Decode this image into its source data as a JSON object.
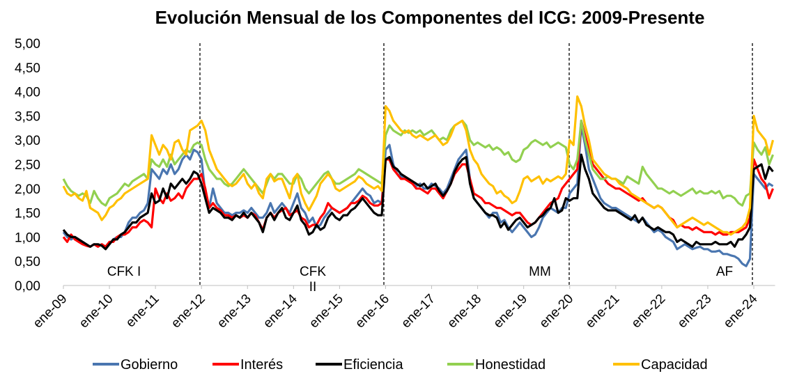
{
  "chart_data": {
    "type": "line",
    "title": "Evolución Mensual de los Componentes del ICG: 2009-Presente",
    "categories": [
      "ene-09",
      null,
      null,
      null,
      null,
      null,
      null,
      null,
      null,
      null,
      null,
      null,
      "ene-10",
      null,
      null,
      null,
      null,
      null,
      null,
      null,
      null,
      null,
      null,
      null,
      "ene-11",
      null,
      null,
      null,
      null,
      null,
      null,
      null,
      null,
      null,
      null,
      null,
      "ene-12",
      null,
      null,
      null,
      null,
      null,
      null,
      null,
      null,
      null,
      null,
      null,
      "ene-13",
      null,
      null,
      null,
      null,
      null,
      null,
      null,
      null,
      null,
      null,
      null,
      "ene-14",
      null,
      null,
      null,
      null,
      null,
      null,
      null,
      null,
      null,
      null,
      null,
      "ene-15",
      null,
      null,
      null,
      null,
      null,
      null,
      null,
      null,
      null,
      null,
      null,
      "ene-16",
      null,
      null,
      null,
      null,
      null,
      null,
      null,
      null,
      null,
      null,
      null,
      "ene-17",
      null,
      null,
      null,
      null,
      null,
      null,
      null,
      null,
      null,
      null,
      null,
      "ene-18",
      null,
      null,
      null,
      null,
      null,
      null,
      null,
      null,
      null,
      null,
      null,
      "ene-19",
      null,
      null,
      null,
      null,
      null,
      null,
      null,
      null,
      null,
      null,
      null,
      "ene-20",
      null,
      null,
      null,
      null,
      null,
      null,
      null,
      null,
      null,
      null,
      null,
      "ene-21",
      null,
      null,
      null,
      null,
      null,
      null,
      null,
      null,
      null,
      null,
      null,
      "ene-22",
      null,
      null,
      null,
      null,
      null,
      null,
      null,
      null,
      null,
      null,
      null,
      "ene-23",
      null,
      null,
      null,
      null,
      null,
      null,
      null,
      null,
      null,
      null,
      null,
      "ene-24",
      null,
      null,
      null,
      null,
      null
    ],
    "series": [
      {
        "name": "Gobierno",
        "color": "#4a76b0",
        "values": [
          1.1,
          1.0,
          0.95,
          1.0,
          0.95,
          0.9,
          0.85,
          0.8,
          0.85,
          0.8,
          0.85,
          0.8,
          0.85,
          0.95,
          1.0,
          1.0,
          1.1,
          1.3,
          1.4,
          1.4,
          1.5,
          1.55,
          1.7,
          2.4,
          2.3,
          2.2,
          2.4,
          2.3,
          2.5,
          2.3,
          2.4,
          2.6,
          2.7,
          2.6,
          2.8,
          2.75,
          2.6,
          1.9,
          1.6,
          2.0,
          1.7,
          1.6,
          1.5,
          1.5,
          1.45,
          1.5,
          1.5,
          1.55,
          1.5,
          1.6,
          1.5,
          1.4,
          1.4,
          1.5,
          1.7,
          1.5,
          1.6,
          1.7,
          1.6,
          1.5,
          1.7,
          1.9,
          1.6,
          1.5,
          1.3,
          1.4,
          1.2,
          1.25,
          1.4,
          1.5,
          1.6,
          1.55,
          1.5,
          1.55,
          1.6,
          1.7,
          1.8,
          1.9,
          2.0,
          1.9,
          1.85,
          1.7,
          1.75,
          1.7,
          2.8,
          2.9,
          2.5,
          2.3,
          2.25,
          2.2,
          2.2,
          2.1,
          2.05,
          2.1,
          2.0,
          2.0,
          2.1,
          2.05,
          2.0,
          1.9,
          2.0,
          2.2,
          2.4,
          2.6,
          2.7,
          2.8,
          2.2,
          1.8,
          1.7,
          1.6,
          1.5,
          1.4,
          1.5,
          1.5,
          1.3,
          1.35,
          1.2,
          1.1,
          1.2,
          1.3,
          1.2,
          1.1,
          1.0,
          1.05,
          1.2,
          1.4,
          1.5,
          1.6,
          1.55,
          1.5,
          1.6,
          1.6,
          1.9,
          2.0,
          2.1,
          3.3,
          2.9,
          2.4,
          2.2,
          2.0,
          1.8,
          1.7,
          1.65,
          1.6,
          1.6,
          1.55,
          1.5,
          1.45,
          1.4,
          1.35,
          1.3,
          1.4,
          1.3,
          1.2,
          1.1,
          1.15,
          1.1,
          1.0,
          0.95,
          0.9,
          0.75,
          0.8,
          0.85,
          0.8,
          0.75,
          0.78,
          0.8,
          0.75,
          0.75,
          0.7,
          0.7,
          0.72,
          0.65,
          0.65,
          0.62,
          0.6,
          0.55,
          0.45,
          0.4,
          0.55,
          2.3,
          2.2,
          2.1,
          2.0,
          2.1,
          2.05
        ]
      },
      {
        "name": "Interés",
        "color": "#ff0000",
        "values": [
          1.0,
          0.9,
          1.05,
          0.95,
          0.9,
          0.85,
          0.82,
          0.8,
          0.85,
          0.8,
          0.85,
          0.8,
          0.9,
          0.9,
          1.0,
          1.05,
          1.05,
          1.1,
          1.2,
          1.2,
          1.3,
          1.35,
          1.3,
          1.2,
          2.0,
          1.8,
          1.7,
          1.9,
          1.75,
          1.8,
          1.9,
          1.8,
          2.0,
          2.1,
          2.2,
          2.2,
          2.3,
          2.0,
          1.6,
          1.7,
          1.6,
          1.55,
          1.45,
          1.45,
          1.4,
          1.45,
          1.4,
          1.45,
          1.4,
          1.5,
          1.45,
          1.3,
          1.15,
          1.4,
          1.5,
          1.4,
          1.5,
          1.55,
          1.6,
          1.45,
          1.5,
          1.55,
          1.4,
          1.35,
          1.2,
          1.25,
          1.25,
          1.4,
          1.5,
          1.7,
          1.6,
          1.55,
          1.5,
          1.55,
          1.6,
          1.7,
          1.7,
          1.75,
          1.85,
          1.8,
          1.7,
          1.65,
          1.65,
          1.7,
          2.6,
          2.6,
          2.4,
          2.3,
          2.2,
          2.2,
          2.15,
          2.1,
          2.0,
          2.0,
          1.95,
          1.9,
          2.0,
          2.0,
          1.9,
          1.8,
          1.95,
          2.1,
          2.3,
          2.4,
          2.5,
          2.5,
          2.2,
          1.9,
          1.85,
          1.8,
          1.7,
          1.7,
          1.65,
          1.6,
          1.6,
          1.55,
          1.5,
          1.45,
          1.5,
          1.5,
          1.4,
          1.3,
          1.25,
          1.3,
          1.4,
          1.5,
          1.6,
          1.7,
          1.75,
          1.8,
          2.0,
          2.1,
          2.2,
          2.3,
          2.4,
          3.4,
          3.1,
          2.8,
          2.5,
          2.4,
          2.3,
          2.2,
          2.1,
          2.05,
          2.0,
          2.0,
          1.95,
          1.9,
          1.85,
          1.8,
          1.75,
          1.8,
          1.7,
          1.65,
          1.6,
          1.65,
          1.6,
          1.5,
          1.4,
          1.35,
          1.2,
          1.25,
          1.2,
          1.2,
          1.15,
          1.2,
          1.15,
          1.1,
          1.1,
          1.1,
          1.05,
          1.1,
          1.05,
          1.05,
          1.1,
          1.1,
          1.1,
          1.15,
          1.2,
          1.4,
          2.6,
          2.4,
          2.2,
          2.1,
          1.8,
          2.0
        ]
      },
      {
        "name": "Eficiencia",
        "color": "#000000",
        "values": [
          1.15,
          1.05,
          1.0,
          1.0,
          0.95,
          0.9,
          0.85,
          0.8,
          0.85,
          0.85,
          0.82,
          0.75,
          0.85,
          0.95,
          0.95,
          1.05,
          1.1,
          1.2,
          1.3,
          1.3,
          1.4,
          1.45,
          1.5,
          1.9,
          1.7,
          1.75,
          2.0,
          1.8,
          2.1,
          2.0,
          2.1,
          2.2,
          2.1,
          2.2,
          2.35,
          2.3,
          2.1,
          1.8,
          1.5,
          1.6,
          1.55,
          1.5,
          1.4,
          1.4,
          1.35,
          1.45,
          1.4,
          1.5,
          1.4,
          1.5,
          1.4,
          1.3,
          1.1,
          1.4,
          1.5,
          1.35,
          1.5,
          1.6,
          1.4,
          1.35,
          1.5,
          1.65,
          1.35,
          1.25,
          1.05,
          1.1,
          1.25,
          1.15,
          1.2,
          1.4,
          1.5,
          1.4,
          1.35,
          1.45,
          1.45,
          1.55,
          1.6,
          1.7,
          1.8,
          1.7,
          1.6,
          1.5,
          1.45,
          1.45,
          2.6,
          2.65,
          2.45,
          2.4,
          2.3,
          2.25,
          2.2,
          2.15,
          2.1,
          2.05,
          2.1,
          2.0,
          2.05,
          2.1,
          1.95,
          1.85,
          1.95,
          2.1,
          2.35,
          2.5,
          2.6,
          2.65,
          2.1,
          1.8,
          1.7,
          1.6,
          1.5,
          1.45,
          1.45,
          1.4,
          1.2,
          1.3,
          1.15,
          1.25,
          1.35,
          1.4,
          1.3,
          1.2,
          1.25,
          1.3,
          1.4,
          1.45,
          1.55,
          1.6,
          1.8,
          1.5,
          1.55,
          1.8,
          1.75,
          1.8,
          1.8,
          2.7,
          2.4,
          2.2,
          1.9,
          1.8,
          1.7,
          1.6,
          1.55,
          1.55,
          1.55,
          1.5,
          1.45,
          1.4,
          1.35,
          1.45,
          1.3,
          1.4,
          1.25,
          1.2,
          1.15,
          1.2,
          1.15,
          1.1,
          1.1,
          1.05,
          0.9,
          0.95,
          0.9,
          0.85,
          0.8,
          0.9,
          0.85,
          0.85,
          0.85,
          0.85,
          0.9,
          0.85,
          0.85,
          0.85,
          0.9,
          0.8,
          0.95,
          0.95,
          1.05,
          1.2,
          2.4,
          2.45,
          2.5,
          2.2,
          2.45,
          2.35
        ]
      },
      {
        "name": "Honestidad",
        "color": "#92d050",
        "values": [
          2.2,
          2.05,
          1.95,
          1.9,
          1.85,
          1.9,
          1.85,
          1.7,
          1.95,
          1.8,
          1.7,
          1.65,
          1.8,
          1.85,
          1.9,
          2.0,
          2.1,
          2.05,
          2.15,
          2.2,
          2.25,
          2.3,
          2.2,
          2.6,
          2.5,
          2.45,
          2.6,
          2.45,
          2.7,
          2.5,
          2.6,
          2.7,
          2.8,
          2.75,
          2.9,
          2.95,
          2.9,
          2.6,
          2.4,
          2.3,
          2.2,
          2.2,
          2.1,
          2.05,
          2.1,
          2.2,
          2.3,
          2.4,
          2.3,
          2.2,
          2.1,
          2.0,
          1.9,
          2.1,
          2.3,
          2.2,
          2.3,
          2.3,
          2.2,
          2.1,
          2.1,
          2.3,
          2.2,
          2.0,
          1.9,
          2.0,
          2.1,
          2.2,
          2.3,
          2.35,
          2.2,
          2.1,
          2.1,
          2.15,
          2.2,
          2.25,
          2.3,
          2.4,
          2.35,
          2.3,
          2.25,
          2.2,
          2.15,
          2.1,
          3.1,
          3.3,
          3.2,
          3.15,
          3.1,
          3.2,
          3.15,
          3.2,
          3.15,
          3.2,
          3.1,
          3.15,
          3.2,
          3.1,
          3.0,
          3.05,
          3.0,
          3.2,
          3.3,
          3.35,
          3.4,
          3.3,
          3.0,
          2.9,
          2.95,
          2.9,
          2.85,
          2.9,
          2.8,
          2.85,
          2.8,
          2.7,
          2.75,
          2.6,
          2.55,
          2.6,
          2.8,
          2.85,
          2.95,
          3.0,
          2.95,
          2.9,
          2.95,
          2.85,
          2.9,
          2.95,
          2.9,
          2.85,
          2.5,
          2.4,
          2.6,
          3.4,
          3.0,
          2.7,
          2.4,
          2.3,
          2.2,
          2.2,
          2.25,
          2.2,
          2.2,
          2.15,
          2.1,
          2.25,
          2.2,
          2.15,
          2.1,
          2.45,
          2.3,
          2.2,
          2.1,
          2.0,
          2.0,
          1.95,
          1.9,
          1.95,
          1.9,
          1.85,
          1.9,
          1.95,
          2.0,
          1.9,
          1.95,
          1.9,
          1.9,
          1.95,
          1.9,
          1.95,
          1.8,
          1.85,
          1.85,
          1.8,
          1.7,
          1.65,
          1.85,
          1.9,
          2.95,
          2.8,
          2.7,
          2.85,
          2.5,
          2.7
        ]
      },
      {
        "name": "Capacidad",
        "color": "#ffc000",
        "values": [
          2.05,
          1.9,
          1.85,
          1.9,
          1.8,
          1.75,
          1.95,
          1.6,
          1.55,
          1.5,
          1.35,
          1.45,
          1.6,
          1.65,
          1.75,
          1.8,
          1.9,
          1.95,
          2.0,
          2.05,
          2.1,
          2.15,
          2.2,
          3.1,
          2.9,
          2.7,
          2.9,
          2.8,
          2.6,
          2.95,
          3.0,
          2.8,
          2.7,
          3.2,
          3.25,
          3.3,
          3.4,
          3.2,
          2.8,
          2.6,
          2.4,
          2.3,
          2.2,
          2.1,
          2.05,
          2.1,
          2.2,
          2.3,
          2.1,
          2.0,
          2.1,
          1.9,
          1.8,
          2.2,
          2.3,
          2.15,
          2.2,
          2.2,
          2.0,
          1.8,
          2.2,
          2.3,
          1.9,
          1.7,
          1.55,
          1.7,
          1.85,
          2.1,
          2.2,
          2.3,
          2.2,
          2.0,
          1.95,
          2.0,
          2.05,
          2.1,
          2.15,
          2.25,
          2.2,
          2.1,
          2.05,
          2.0,
          2.05,
          1.95,
          3.7,
          3.6,
          3.4,
          3.3,
          3.2,
          3.15,
          3.2,
          3.1,
          3.05,
          3.1,
          3.05,
          3.0,
          3.05,
          3.1,
          3.0,
          2.9,
          2.95,
          3.1,
          3.3,
          3.35,
          3.4,
          3.2,
          2.8,
          2.6,
          2.5,
          2.3,
          2.2,
          2.1,
          2.05,
          1.9,
          1.95,
          1.85,
          1.8,
          1.7,
          1.75,
          1.95,
          2.2,
          2.25,
          2.15,
          2.2,
          2.25,
          2.1,
          2.2,
          2.15,
          2.2,
          2.25,
          2.2,
          2.3,
          3.0,
          2.9,
          3.9,
          3.7,
          3.3,
          3.0,
          2.6,
          2.5,
          2.4,
          2.3,
          2.25,
          2.2,
          2.2,
          2.1,
          2.05,
          2.0,
          1.9,
          1.85,
          1.8,
          1.75,
          1.7,
          1.65,
          1.6,
          1.65,
          1.6,
          1.5,
          1.4,
          1.3,
          1.2,
          1.25,
          1.3,
          1.35,
          1.4,
          1.35,
          1.3,
          1.25,
          1.3,
          1.25,
          1.2,
          1.15,
          1.1,
          1.1,
          1.05,
          1.1,
          1.15,
          1.2,
          1.3,
          1.6,
          3.5,
          3.2,
          3.1,
          3.0,
          2.7,
          3.0
        ]
      }
    ],
    "annotations": [
      "CFK I",
      "CFK II",
      "MM",
      "AF"
    ],
    "ylim": [
      0,
      5
    ],
    "yticks": [
      {
        "value": 0,
        "label": "0,00"
      },
      {
        "value": 0.5,
        "label": "0,50"
      },
      {
        "value": 1,
        "label": "1,00"
      },
      {
        "value": 1.5,
        "label": "1,50"
      },
      {
        "value": 2,
        "label": "2,00"
      },
      {
        "value": 2.5,
        "label": "2,50"
      },
      {
        "value": 3,
        "label": "3,00"
      },
      {
        "value": 3.5,
        "label": "3,50"
      },
      {
        "value": 4,
        "label": "4,00"
      },
      {
        "value": 4.5,
        "label": "4,50"
      },
      {
        "value": 5,
        "label": "5,00"
      }
    ],
    "legend": "bottom"
  }
}
